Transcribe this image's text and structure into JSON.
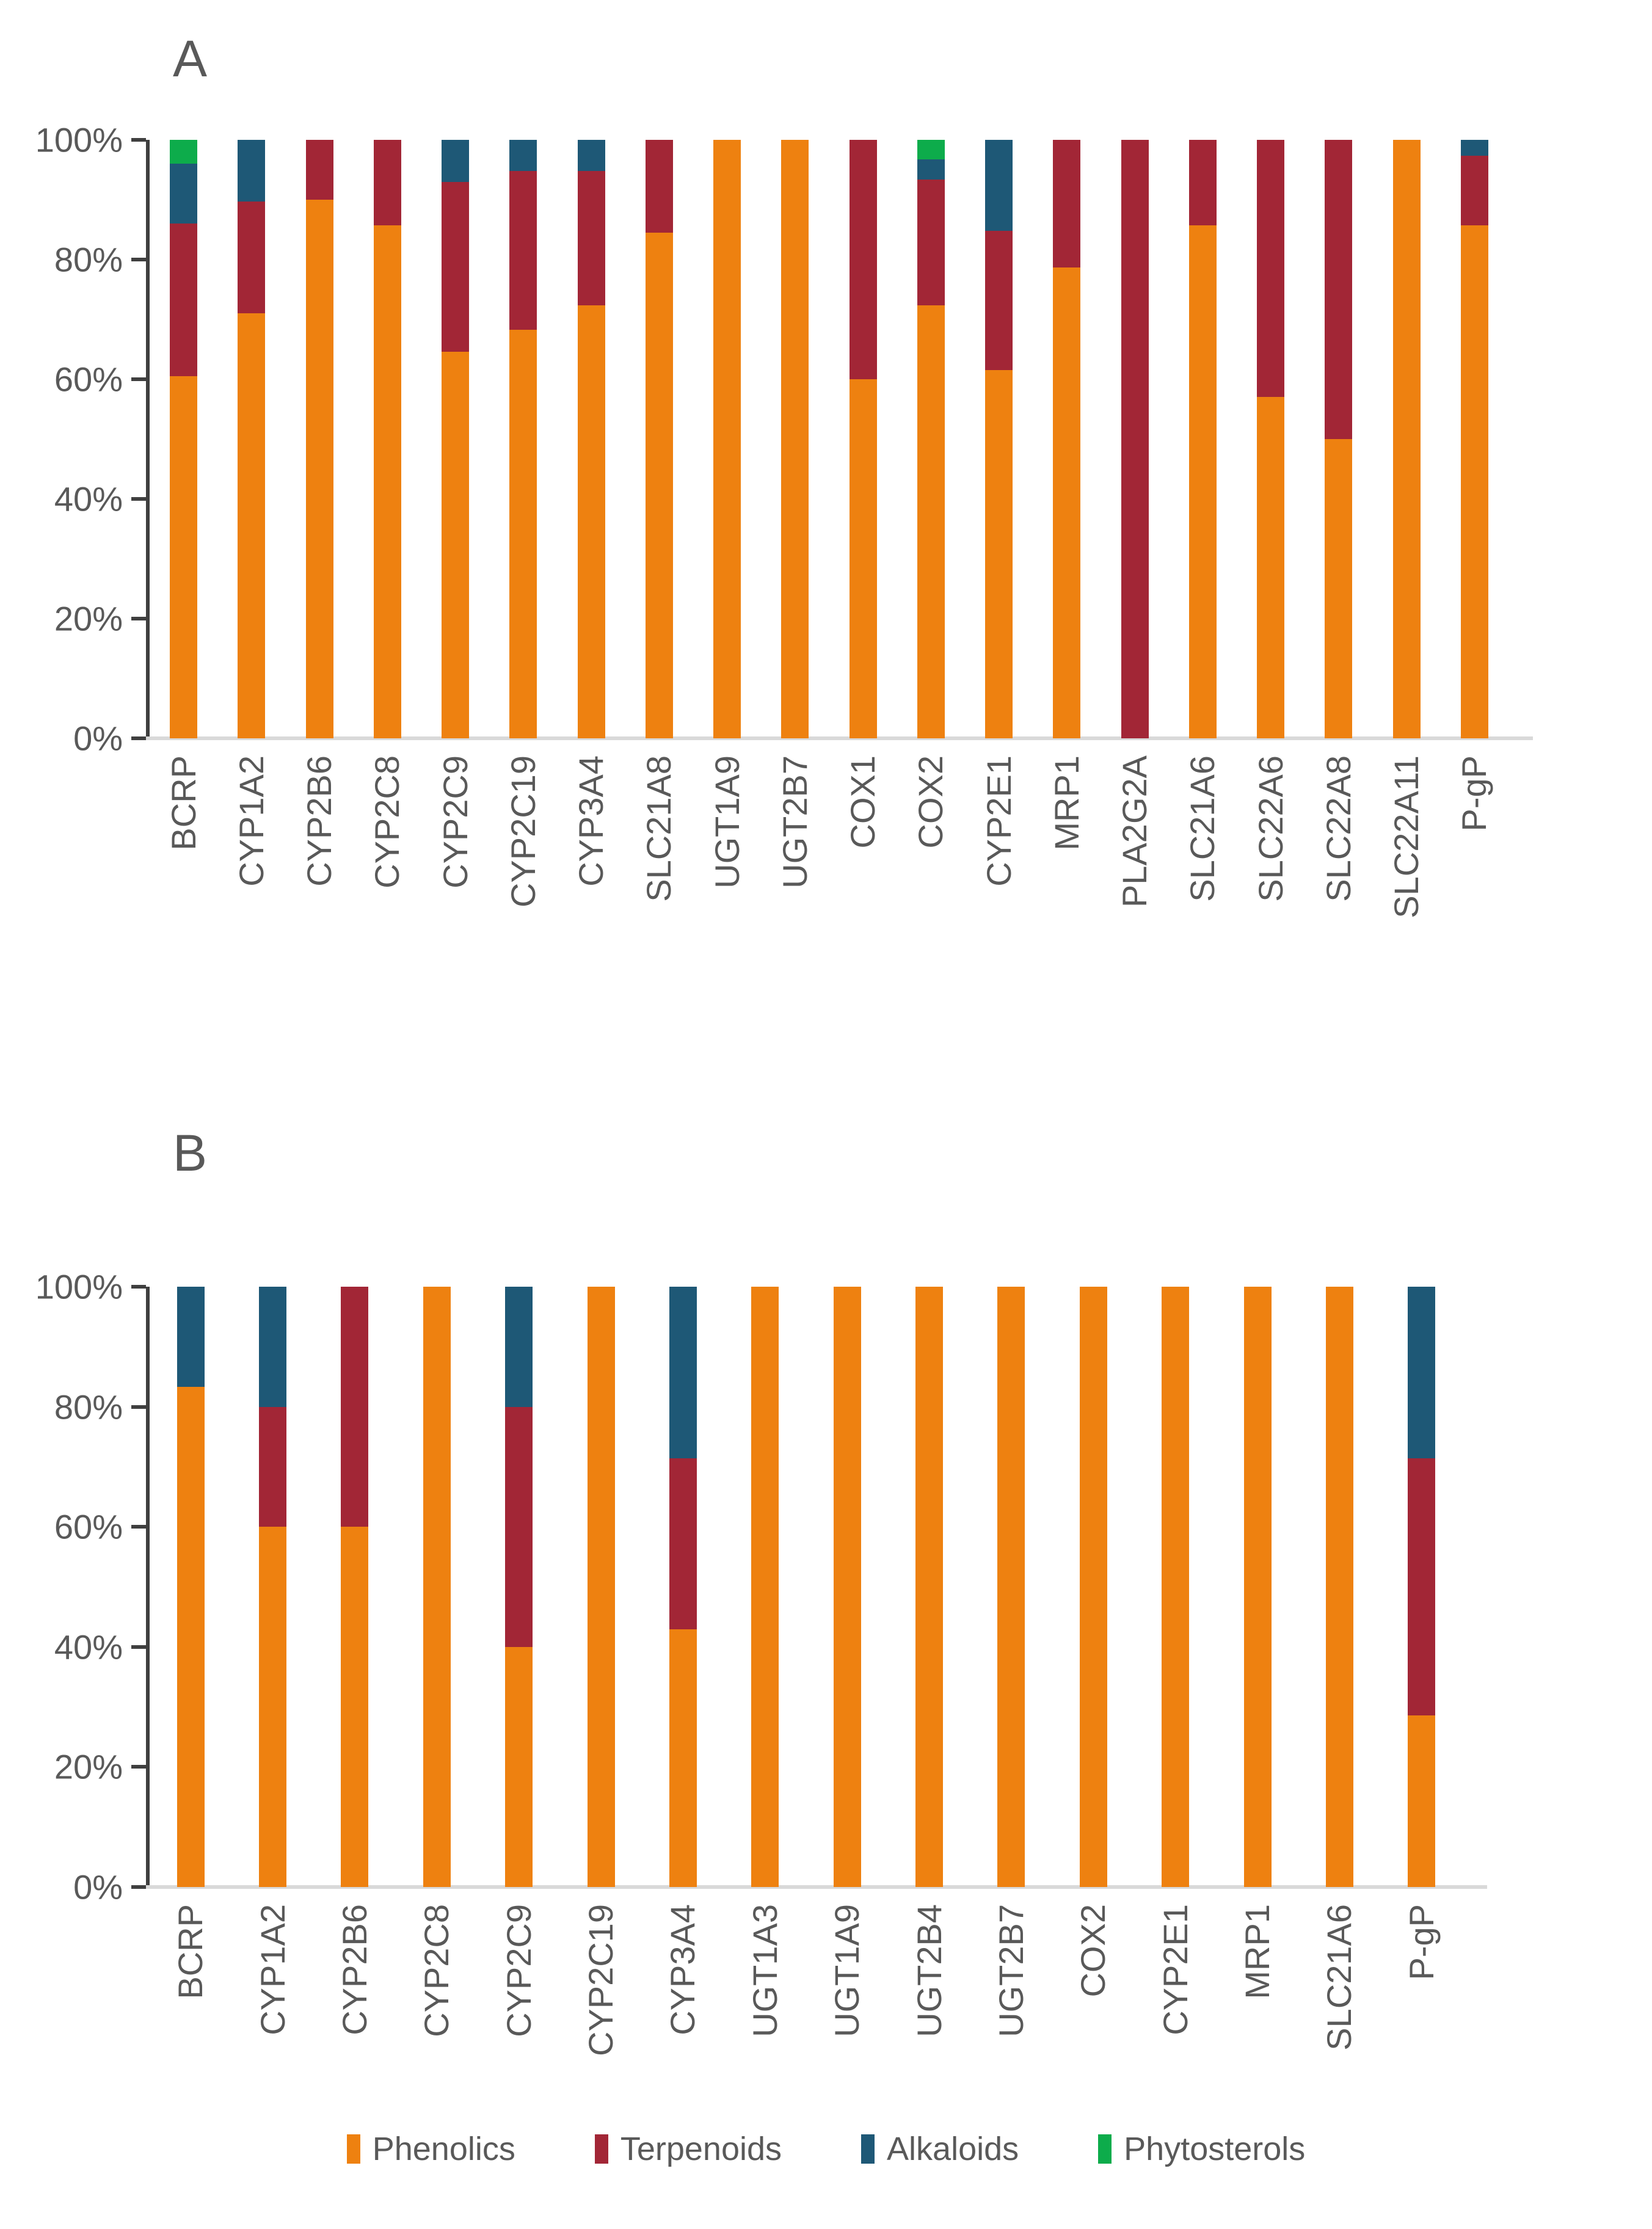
{
  "figure": {
    "panel_a_label": "A",
    "panel_b_label": "B"
  },
  "colors": {
    "phenolics": "#EE8110",
    "terpenoids": "#A22636",
    "alkaloids": "#1E5876",
    "phytosterols": "#0DAC4B",
    "text_grey": "#595959",
    "axis_dark": "#3F3F3F",
    "baseline_grey": "#D9D9D9"
  },
  "legend": [
    {
      "label": "Phenolics",
      "color": "#EE8110"
    },
    {
      "label": "Terpenoids",
      "color": "#A22636"
    },
    {
      "label": "Alkaloids",
      "color": "#1E5876"
    },
    {
      "label": "Phytosterols",
      "color": "#0DAC4B"
    }
  ],
  "chart_data": [
    {
      "type": "bar",
      "stacked": true,
      "units": "percent",
      "panel_label": "A",
      "ylim": [
        0,
        100
      ],
      "grid": false,
      "legend_position": "bottom",
      "y_ticks": [
        "100%",
        "80%",
        "60%",
        "40%",
        "20%",
        "0%"
      ],
      "categories": [
        "BCRP",
        "CYP1A2",
        "CYP2B6",
        "CYP2C8",
        "CYP2C9",
        "CYP2C19",
        "CYP3A4",
        "SLC21A8",
        "UGT1A9",
        "UGT2B7",
        "COX1",
        "COX2",
        "CYP2E1",
        "MRP1",
        "PLA2G2A",
        "SLC21A6",
        "SLC22A6",
        "SLC22A8",
        "SLC22A11",
        "P-gP"
      ],
      "series": [
        {
          "name": "Phenolics",
          "color": "#EE8110",
          "values": [
            60.5,
            71.0,
            90.0,
            85.7,
            64.6,
            68.3,
            72.3,
            84.5,
            100,
            100,
            60.0,
            72.3,
            61.5,
            78.7,
            0,
            85.7,
            57.0,
            50.0,
            100,
            85.7
          ]
        },
        {
          "name": "Terpenoids",
          "color": "#A22636",
          "values": [
            25.5,
            18.7,
            10.0,
            14.3,
            28.4,
            26.5,
            22.5,
            15.5,
            0,
            0,
            40.0,
            21.1,
            23.3,
            21.3,
            100,
            14.3,
            43.0,
            50.0,
            0,
            11.6
          ]
        },
        {
          "name": "Alkaloids",
          "color": "#1E5876",
          "values": [
            10.0,
            10.3,
            0,
            0,
            7.0,
            5.2,
            5.2,
            0,
            0,
            0,
            0,
            3.3,
            15.2,
            0,
            0,
            0,
            0,
            0,
            0,
            2.7
          ]
        },
        {
          "name": "Phytosterols",
          "color": "#0DAC4B",
          "values": [
            4.0,
            0,
            0,
            0,
            0,
            0,
            0,
            0,
            0,
            0,
            0,
            3.3,
            0,
            0,
            0,
            0,
            0,
            0,
            0,
            0
          ]
        }
      ]
    },
    {
      "type": "bar",
      "stacked": true,
      "units": "percent",
      "panel_label": "B",
      "ylim": [
        0,
        100
      ],
      "grid": false,
      "legend_position": "bottom",
      "y_ticks": [
        "100%",
        "80%",
        "60%",
        "40%",
        "20%",
        "0%"
      ],
      "categories": [
        "BCRP",
        "CYP1A2",
        "CYP2B6",
        "CYP2C8",
        "CYP2C9",
        "CYP2C19",
        "CYP3A4",
        "UGT1A3",
        "UGT1A9",
        "UGT2B4",
        "UGT2B7",
        "COX2",
        "CYP2E1",
        "MRP1",
        "SLC21A6",
        "P-gP"
      ],
      "series": [
        {
          "name": "Phenolics",
          "color": "#EE8110",
          "values": [
            83.3,
            60.0,
            60.0,
            100,
            40.0,
            100,
            42.9,
            100,
            100,
            100,
            100,
            100,
            100,
            100,
            100,
            28.6
          ]
        },
        {
          "name": "Terpenoids",
          "color": "#A22636",
          "values": [
            0,
            20.0,
            40.0,
            0,
            40.0,
            0,
            28.5,
            0,
            0,
            0,
            0,
            0,
            0,
            0,
            0,
            42.8
          ]
        },
        {
          "name": "Alkaloids",
          "color": "#1E5876",
          "values": [
            16.7,
            20.0,
            0,
            0,
            20.0,
            0,
            28.6,
            0,
            0,
            0,
            0,
            0,
            0,
            0,
            0,
            28.6
          ]
        },
        {
          "name": "Phytosterols",
          "color": "#0DAC4B",
          "values": [
            0,
            0,
            0,
            0,
            0,
            0,
            0,
            0,
            0,
            0,
            0,
            0,
            0,
            0,
            0,
            0
          ]
        }
      ]
    }
  ]
}
